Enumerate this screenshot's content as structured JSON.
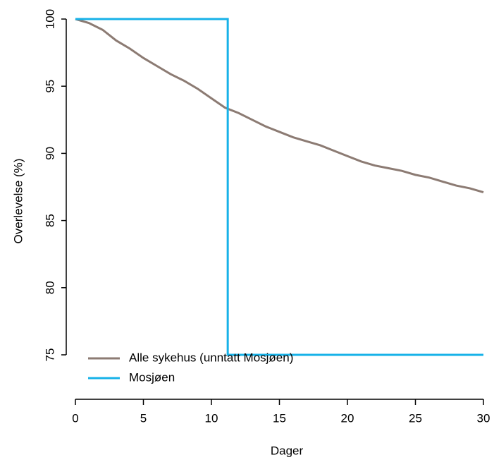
{
  "chart_data": {
    "type": "line",
    "xlabel": "Dager",
    "ylabel": "Overlevelse (%)",
    "xlim": [
      0,
      30
    ],
    "ylim": [
      75,
      100
    ],
    "xticks": [
      0,
      5,
      10,
      15,
      20,
      25,
      30
    ],
    "yticks": [
      75,
      80,
      85,
      90,
      95,
      100
    ],
    "legend": "bottomleft",
    "series": [
      {
        "name": "Alle sykehus (unntatt Mosjøen)",
        "color": "#8c7b73",
        "x": [
          0,
          1,
          2,
          3,
          4,
          5,
          6,
          7,
          8,
          9,
          10,
          11,
          12,
          13,
          14,
          15,
          16,
          17,
          18,
          19,
          20,
          21,
          22,
          23,
          24,
          25,
          26,
          27,
          28,
          29,
          30
        ],
        "values": [
          100,
          99.7,
          99.2,
          98.4,
          97.8,
          97.1,
          96.5,
          95.9,
          95.4,
          94.8,
          94.1,
          93.4,
          93.0,
          92.5,
          92.0,
          91.6,
          91.2,
          90.9,
          90.6,
          90.2,
          89.8,
          89.4,
          89.1,
          88.9,
          88.7,
          88.4,
          88.2,
          87.9,
          87.6,
          87.4,
          87.1
        ]
      },
      {
        "name": "Mosjøen",
        "color": "#17b2e8",
        "x": [
          0,
          11.2,
          11.2,
          30
        ],
        "values": [
          100,
          100,
          75,
          75
        ]
      }
    ]
  }
}
